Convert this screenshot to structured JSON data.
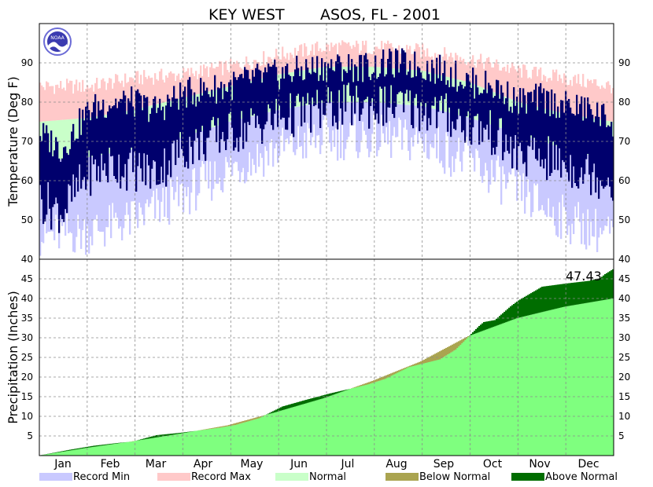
{
  "chart_data": [
    {
      "type": "bar",
      "panel": "temperature",
      "title_left": "KEY WEST",
      "title_right": "ASOS, FL - 2001",
      "ylabel": "Temperature (Deg F)",
      "ylim": [
        40,
        100
      ],
      "yticks": [
        40,
        50,
        60,
        70,
        80,
        90
      ],
      "months": [
        "Jan",
        "Feb",
        "Mar",
        "Apr",
        "May",
        "Jun",
        "Jul",
        "Aug",
        "Sep",
        "Oct",
        "Nov",
        "Dec"
      ],
      "month_centers_doy": [
        16,
        46,
        75,
        105,
        136,
        166,
        197,
        228,
        258,
        289,
        319,
        350
      ],
      "grid": true,
      "climatology": {
        "record_max": {
          "anchor_doy": [
            1,
            32,
            60,
            91,
            121,
            152,
            182,
            213,
            244,
            274,
            305,
            335,
            365
          ],
          "values": [
            84,
            84,
            86,
            87,
            89,
            92,
            94,
            94,
            93,
            91,
            88,
            86,
            84
          ]
        },
        "record_min": {
          "anchor_doy": [
            1,
            32,
            60,
            91,
            121,
            152,
            182,
            213,
            244,
            274,
            305,
            335,
            365
          ],
          "values": [
            46,
            47,
            50,
            56,
            63,
            68,
            71,
            71,
            70,
            65,
            57,
            50,
            46
          ]
        },
        "normal_high": {
          "anchor_doy": [
            1,
            32,
            60,
            91,
            121,
            152,
            182,
            213,
            244,
            274,
            305,
            335,
            365
          ],
          "values": [
            75,
            76,
            78,
            81,
            84,
            87,
            89,
            89,
            88,
            85,
            80,
            77,
            75
          ]
        },
        "normal_low": {
          "anchor_doy": [
            1,
            32,
            60,
            91,
            121,
            152,
            182,
            213,
            244,
            274,
            305,
            335,
            365
          ],
          "values": [
            65,
            66,
            68,
            71,
            75,
            78,
            80,
            80,
            79,
            76,
            72,
            68,
            65
          ]
        }
      },
      "observed_2001": {
        "anchor_doy": [
          1,
          15,
          32,
          46,
          60,
          75,
          91,
          105,
          121,
          136,
          152,
          166,
          182,
          197,
          213,
          228,
          244,
          258,
          274,
          289,
          305,
          319,
          335,
          350,
          365
        ],
        "high_values": [
          72,
          68,
          78,
          80,
          80,
          78,
          82,
          83,
          84,
          86,
          87,
          88,
          89,
          89,
          89,
          90,
          89,
          88,
          85,
          84,
          80,
          81,
          79,
          78,
          75
        ],
        "low_values": [
          55,
          52,
          62,
          64,
          63,
          62,
          68,
          70,
          72,
          74,
          76,
          77,
          78,
          79,
          79,
          79,
          78,
          77,
          74,
          72,
          66,
          66,
          64,
          62,
          60
        ]
      }
    },
    {
      "type": "area",
      "panel": "precipitation",
      "ylabel": "Precipitation (Inches)",
      "ylim": [
        0,
        50
      ],
      "yticks": [
        5,
        10,
        15,
        20,
        25,
        30,
        35,
        40,
        45
      ],
      "grid": true,
      "total_label": "47.43",
      "normal_cumulative": {
        "month_end_doy": [
          0,
          31,
          59,
          90,
          120,
          151,
          181,
          212,
          243,
          273,
          304,
          334,
          365
        ],
        "values": [
          0,
          2.0,
          3.6,
          5.6,
          7.7,
          11.1,
          14.6,
          19.0,
          24.0,
          30.4,
          35.0,
          37.9,
          40.0
        ]
      },
      "observed_cumulative": {
        "doy": [
          0,
          20,
          35,
          50,
          60,
          75,
          90,
          100,
          115,
          125,
          140,
          155,
          170,
          185,
          200,
          210,
          220,
          225,
          235,
          245,
          255,
          265,
          270,
          280,
          283,
          290,
          300,
          305,
          320,
          335,
          350,
          357,
          360,
          365
        ],
        "values": [
          0,
          1.5,
          2.5,
          3.2,
          3.6,
          5.2,
          5.8,
          6.3,
          7.1,
          7.8,
          9.5,
          12.5,
          14.2,
          15.8,
          17.2,
          18.2,
          19.5,
          20.5,
          22.5,
          23.5,
          24.5,
          27.0,
          29.0,
          33.0,
          34.0,
          34.5,
          38.0,
          39.5,
          43.0,
          43.8,
          44.5,
          45.2,
          46.2,
          47.43
        ]
      }
    }
  ],
  "legend": [
    {
      "label": "Record Min",
      "color": "#c9c9ff"
    },
    {
      "label": "Record Max",
      "color": "#ffc9c9"
    },
    {
      "label": "Normal",
      "color": "#c9ffc9"
    },
    {
      "label": "Below Normal",
      "color": "#aaa450"
    },
    {
      "label": "Above Normal",
      "color": "#006d00"
    }
  ],
  "colors": {
    "observed": "#00006d",
    "normal_precip": "#7fff7f",
    "below_normal": "#aaa450",
    "above_normal": "#006d00",
    "grid": "#8c8c8c",
    "frame": "#000000"
  },
  "logo_text": "NOAA"
}
